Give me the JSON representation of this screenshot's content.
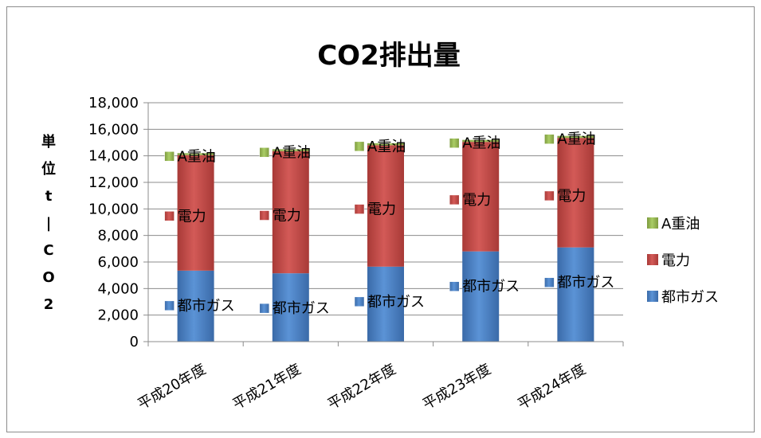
{
  "chart_data": {
    "type": "bar",
    "stacked": true,
    "title": "CO2排出量",
    "ylabel": "単位t|CO2",
    "ylim": [
      0,
      18000
    ],
    "y_ticks": [
      "0",
      "2,000",
      "4,000",
      "6,000",
      "8,000",
      "10,000",
      "12,000",
      "14,000",
      "16,000",
      "18,000"
    ],
    "categories": [
      "平成20年度",
      "平成21年度",
      "平成22年度",
      "平成23年度",
      "平成24年度"
    ],
    "series": [
      {
        "name": "都市ガス",
        "values": [
          5350,
          5150,
          5650,
          6800,
          7100
        ],
        "color": "#4a7ebb"
      },
      {
        "name": "電力",
        "values": [
          8700,
          9200,
          9150,
          8250,
          8250
        ],
        "color": "#be4b48"
      },
      {
        "name": "A重油",
        "values": [
          150,
          150,
          150,
          150,
          150
        ],
        "color": "#98b954"
      }
    ],
    "grid": true,
    "legend_position": "right"
  }
}
